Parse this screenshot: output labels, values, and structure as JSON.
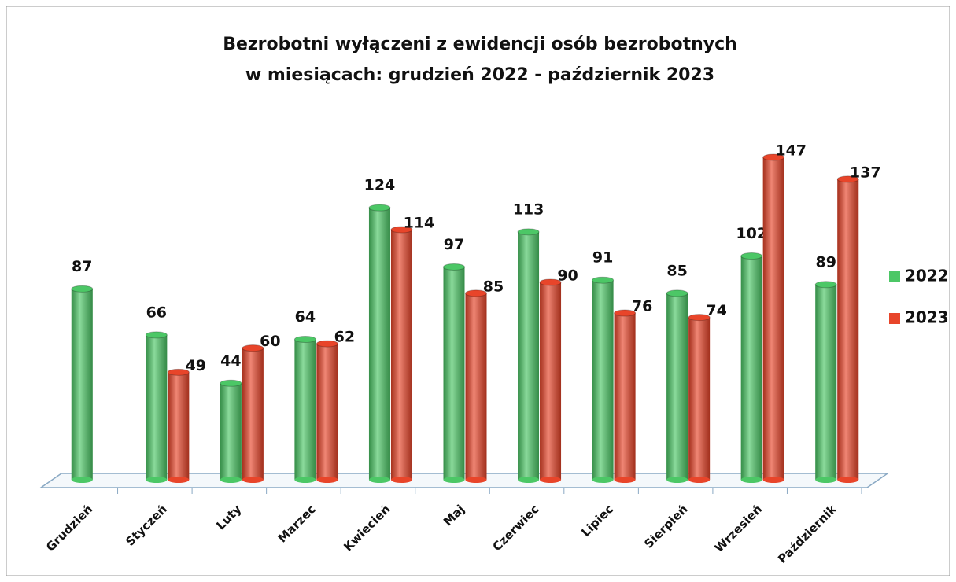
{
  "chart_data": {
    "type": "bar",
    "title": [
      "Bezrobotni wyłączeni z ewidencji osób bezrobotnych",
      "w miesiącach: grudzień 2022 - październik 2023"
    ],
    "categories": [
      "Grudzień",
      "Styczeń",
      "Luty",
      "Marzec",
      "Kwiecień",
      "Maj",
      "Czerwiec",
      "Lipiec",
      "Sierpień",
      "Wrzesień",
      "Październik"
    ],
    "series": [
      {
        "name": "2022",
        "color": "#4cc766",
        "values": [
          87,
          66,
          44,
          64,
          124,
          97,
          113,
          91,
          85,
          102,
          89
        ]
      },
      {
        "name": "2023",
        "color": "#e8452a",
        "values": [
          null,
          49,
          60,
          62,
          114,
          85,
          90,
          76,
          74,
          147,
          137
        ]
      }
    ],
    "legend": "right"
  }
}
